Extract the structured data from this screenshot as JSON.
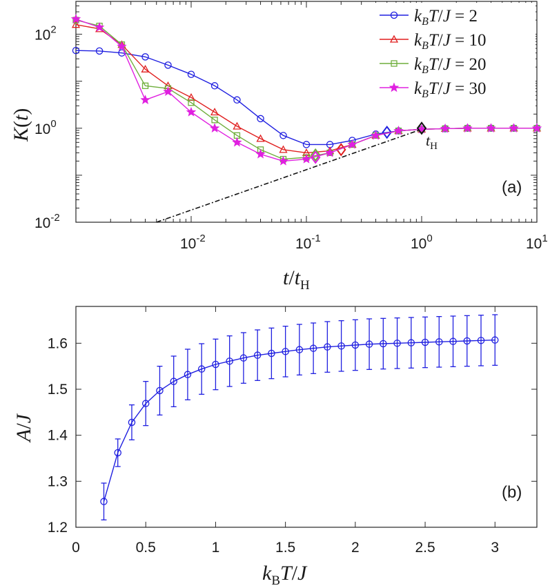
{
  "chart_data": [
    {
      "type": "line",
      "panel_label": "(a)",
      "xscale": "log",
      "yscale": "log",
      "xlabel": "t/t_H",
      "ylabel": "K(t)",
      "xlim": [
        0.001,
        10
      ],
      "ylim": [
        0.01,
        500
      ],
      "x_ticks": [
        {
          "v": 0.01,
          "base": "10",
          "exp": "-2"
        },
        {
          "v": 0.1,
          "base": "10",
          "exp": "-1"
        },
        {
          "v": 1,
          "base": "10",
          "exp": "0"
        },
        {
          "v": 10,
          "base": "10",
          "exp": "1"
        }
      ],
      "y_ticks": [
        {
          "v": 0.01,
          "base": "10",
          "exp": "-2"
        },
        {
          "v": 1,
          "base": "10",
          "exp": "0"
        },
        {
          "v": 100,
          "base": "10",
          "exp": "2"
        }
      ],
      "legend_position": "top-right",
      "annotation": "t_H",
      "annotation_x": 1,
      "reference_line": {
        "style": "dash-dot",
        "x": [
          0.005,
          1
        ],
        "y": [
          0.01,
          0.95
        ]
      },
      "series": [
        {
          "name": "k_B T / J = 2",
          "color": "#1f1fe0",
          "marker": "circle",
          "x": [
            0.001,
            0.0016,
            0.0025,
            0.004,
            0.0063,
            0.01,
            0.016,
            0.025,
            0.04,
            0.063,
            0.1,
            0.16,
            0.25,
            0.4,
            0.63,
            1,
            1.6,
            2.5,
            4,
            6.3,
            10
          ],
          "y": [
            45,
            44,
            40,
            33,
            22,
            14,
            8,
            4,
            1.6,
            0.7,
            0.45,
            0.45,
            0.55,
            0.75,
            0.88,
            0.95,
            0.98,
            1.0,
            1.0,
            1.0,
            1.0
          ],
          "diamond": {
            "x": 0.5,
            "y": 0.82
          }
        },
        {
          "name": "k_B T / J = 10",
          "color": "#e01f1f",
          "marker": "triangle",
          "x": [
            0.001,
            0.0016,
            0.0025,
            0.004,
            0.0063,
            0.01,
            0.016,
            0.025,
            0.04,
            0.063,
            0.1,
            0.16,
            0.25,
            0.4,
            0.63,
            1,
            1.6,
            2.5,
            4,
            6.3,
            10
          ],
          "y": [
            160,
            130,
            60,
            18,
            8,
            4.5,
            2.2,
            1.1,
            0.6,
            0.35,
            0.3,
            0.33,
            0.45,
            0.7,
            0.88,
            0.95,
            0.98,
            1.0,
            1.0,
            1.0,
            1.0
          ],
          "diamond": {
            "x": 0.2,
            "y": 0.35
          }
        },
        {
          "name": "k_B T / J = 20",
          "color": "#6fae3c",
          "marker": "square",
          "x": [
            0.001,
            0.0016,
            0.0025,
            0.004,
            0.0063,
            0.01,
            0.016,
            0.025,
            0.04,
            0.063,
            0.1,
            0.16,
            0.25,
            0.4,
            0.63,
            1,
            1.6,
            2.5,
            4,
            6.3,
            10
          ],
          "y": [
            200,
            150,
            60,
            8,
            7,
            3.5,
            1.5,
            0.7,
            0.35,
            0.22,
            0.24,
            0.3,
            0.45,
            0.7,
            0.88,
            0.95,
            0.98,
            1.0,
            1.0,
            1.0,
            1.0
          ],
          "diamond": {
            "x": 0.12,
            "y": 0.27
          }
        },
        {
          "name": "k_B T / J = 30",
          "color": "#e020e0",
          "marker": "star",
          "x": [
            0.001,
            0.0016,
            0.0025,
            0.004,
            0.0063,
            0.01,
            0.016,
            0.025,
            0.04,
            0.063,
            0.1,
            0.16,
            0.25,
            0.4,
            0.63,
            1,
            1.6,
            2.5,
            4,
            6.3,
            10
          ],
          "y": [
            210,
            140,
            55,
            4,
            6,
            2.2,
            1.0,
            0.5,
            0.28,
            0.2,
            0.22,
            0.3,
            0.45,
            0.7,
            0.88,
            0.95,
            0.98,
            1.0,
            1.0,
            1.0,
            1.0
          ],
          "diamond": {
            "x": 0.12,
            "y": 0.24
          }
        }
      ],
      "black_diamond": {
        "x": 1,
        "y": 1
      }
    },
    {
      "type": "line",
      "panel_label": "(b)",
      "xlabel": "k_B T / J",
      "ylabel": "A/J",
      "xlim": [
        0,
        3.3
      ],
      "ylim": [
        1.2,
        1.68
      ],
      "x_ticks": [
        "0",
        "0.5",
        "1",
        "1.5",
        "2",
        "2.5",
        "3"
      ],
      "y_ticks": [
        "1.2",
        "1.3",
        "1.4",
        "1.5",
        "1.6"
      ],
      "color": "#1f1fe0",
      "x": [
        0.2,
        0.3,
        0.4,
        0.5,
        0.6,
        0.7,
        0.8,
        0.9,
        1.0,
        1.1,
        1.2,
        1.3,
        1.4,
        1.5,
        1.6,
        1.7,
        1.8,
        1.9,
        2.0,
        2.1,
        2.2,
        2.3,
        2.4,
        2.5,
        2.6,
        2.7,
        2.8,
        2.9,
        3.0
      ],
      "y": [
        1.256,
        1.362,
        1.428,
        1.469,
        1.497,
        1.517,
        1.532,
        1.544,
        1.554,
        1.561,
        1.568,
        1.574,
        1.578,
        1.582,
        1.586,
        1.589,
        1.592,
        1.594,
        1.596,
        1.598,
        1.599,
        1.6,
        1.601,
        1.602,
        1.603,
        1.604,
        1.605,
        1.606,
        1.607
      ],
      "err": [
        0.04,
        0.03,
        0.038,
        0.048,
        0.053,
        0.055,
        0.055,
        0.055,
        0.055,
        0.055,
        0.055,
        0.055,
        0.055,
        0.055,
        0.055,
        0.055,
        0.055,
        0.055,
        0.055,
        0.055,
        0.055,
        0.055,
        0.055,
        0.055,
        0.055,
        0.055,
        0.055,
        0.055,
        0.055
      ]
    }
  ]
}
